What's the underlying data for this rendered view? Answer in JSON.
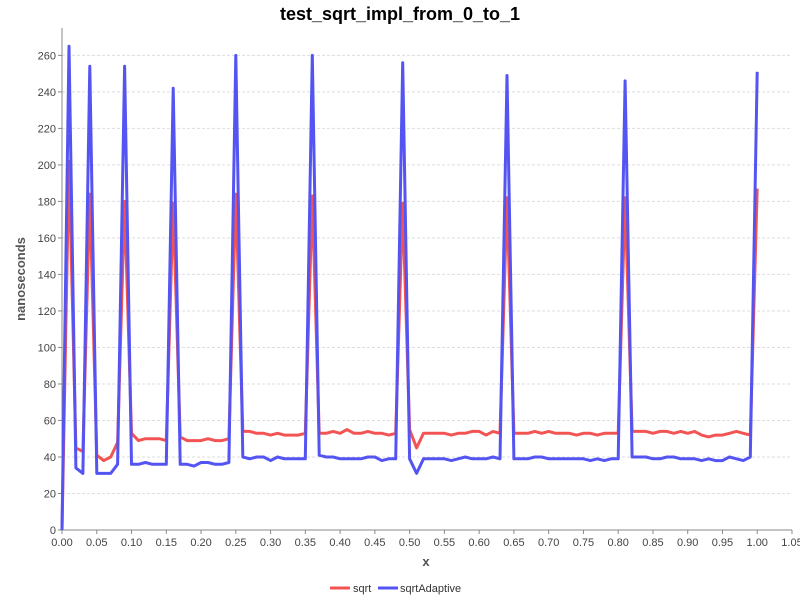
{
  "chart_data": {
    "type": "line",
    "title": "test_sqrt_impl_from_0_to_1",
    "xlabel": "x",
    "ylabel": "nanoseconds",
    "xlim": [
      0,
      1.05
    ],
    "ylim": [
      0,
      275
    ],
    "xticks": [
      "0.00",
      "0.05",
      "0.10",
      "0.15",
      "0.20",
      "0.25",
      "0.30",
      "0.35",
      "0.40",
      "0.45",
      "0.50",
      "0.55",
      "0.60",
      "0.65",
      "0.70",
      "0.75",
      "0.80",
      "0.85",
      "0.90",
      "0.95",
      "1.00",
      "1.05"
    ],
    "yticks": [
      "0",
      "20",
      "40",
      "60",
      "80",
      "100",
      "120",
      "140",
      "160",
      "180",
      "200",
      "220",
      "240",
      "260"
    ],
    "grid": "horizontal dashed",
    "legend_position": "bottom-center",
    "x": [
      0,
      0.01,
      0.02,
      0.03,
      0.04,
      0.05,
      0.06,
      0.07,
      0.08,
      0.09,
      0.1,
      0.11,
      0.12,
      0.13,
      0.14,
      0.15,
      0.16,
      0.17,
      0.18,
      0.19,
      0.2,
      0.21,
      0.22,
      0.23,
      0.24,
      0.25,
      0.26,
      0.27,
      0.28,
      0.29,
      0.3,
      0.31,
      0.32,
      0.33,
      0.34,
      0.35,
      0.36,
      0.37,
      0.38,
      0.39,
      0.4,
      0.41,
      0.42,
      0.43,
      0.44,
      0.45,
      0.46,
      0.47,
      0.48,
      0.49,
      0.5,
      0.51,
      0.52,
      0.53,
      0.54,
      0.55,
      0.56,
      0.57,
      0.58,
      0.59,
      0.6,
      0.61,
      0.62,
      0.63,
      0.64,
      0.65,
      0.66,
      0.67,
      0.68,
      0.69,
      0.7,
      0.71,
      0.72,
      0.73,
      0.74,
      0.75,
      0.76,
      0.77,
      0.78,
      0.79,
      0.8,
      0.81,
      0.82,
      0.83,
      0.84,
      0.85,
      0.86,
      0.87,
      0.88,
      0.89,
      0.9,
      0.91,
      0.92,
      0.93,
      0.94,
      0.95,
      0.96,
      0.97,
      0.98,
      0.99,
      1.0
    ],
    "series": [
      {
        "name": "sqrt",
        "color": "#f25454",
        "values": [
          0,
          202,
          45,
          43,
          184,
          41,
          38,
          40,
          48,
          180,
          53,
          49,
          50,
          50,
          50,
          49,
          179,
          51,
          49,
          49,
          49,
          50,
          49,
          49,
          50,
          184,
          54,
          54,
          53,
          53,
          52,
          53,
          52,
          52,
          52,
          53,
          183,
          53,
          53,
          54,
          53,
          55,
          53,
          53,
          54,
          53,
          53,
          52,
          53,
          179,
          55,
          45,
          53,
          53,
          53,
          53,
          52,
          53,
          53,
          54,
          54,
          52,
          54,
          53,
          182,
          53,
          53,
          53,
          54,
          53,
          54,
          53,
          53,
          53,
          52,
          53,
          53,
          52,
          53,
          53,
          53,
          182,
          54,
          54,
          54,
          53,
          54,
          54,
          53,
          54,
          53,
          54,
          52,
          51,
          52,
          52,
          53,
          54,
          53,
          52,
          187
        ]
      },
      {
        "name": "sqrtAdaptive",
        "color": "#5454f2",
        "values": [
          0,
          265,
          34,
          31,
          254,
          31,
          31,
          31,
          36,
          254,
          36,
          36,
          37,
          36,
          36,
          36,
          242,
          36,
          36,
          35,
          37,
          37,
          36,
          36,
          37,
          260,
          40,
          39,
          40,
          40,
          38,
          40,
          39,
          39,
          39,
          39,
          260,
          41,
          40,
          40,
          39,
          39,
          39,
          39,
          40,
          40,
          38,
          39,
          39,
          256,
          39,
          31,
          39,
          39,
          39,
          39,
          38,
          39,
          40,
          39,
          39,
          39,
          40,
          39,
          249,
          39,
          39,
          39,
          40,
          40,
          39,
          39,
          39,
          39,
          39,
          39,
          38,
          39,
          38,
          39,
          39,
          246,
          40,
          40,
          40,
          39,
          39,
          40,
          40,
          39,
          39,
          39,
          38,
          39,
          38,
          38,
          40,
          39,
          38,
          40,
          251
        ]
      }
    ]
  }
}
